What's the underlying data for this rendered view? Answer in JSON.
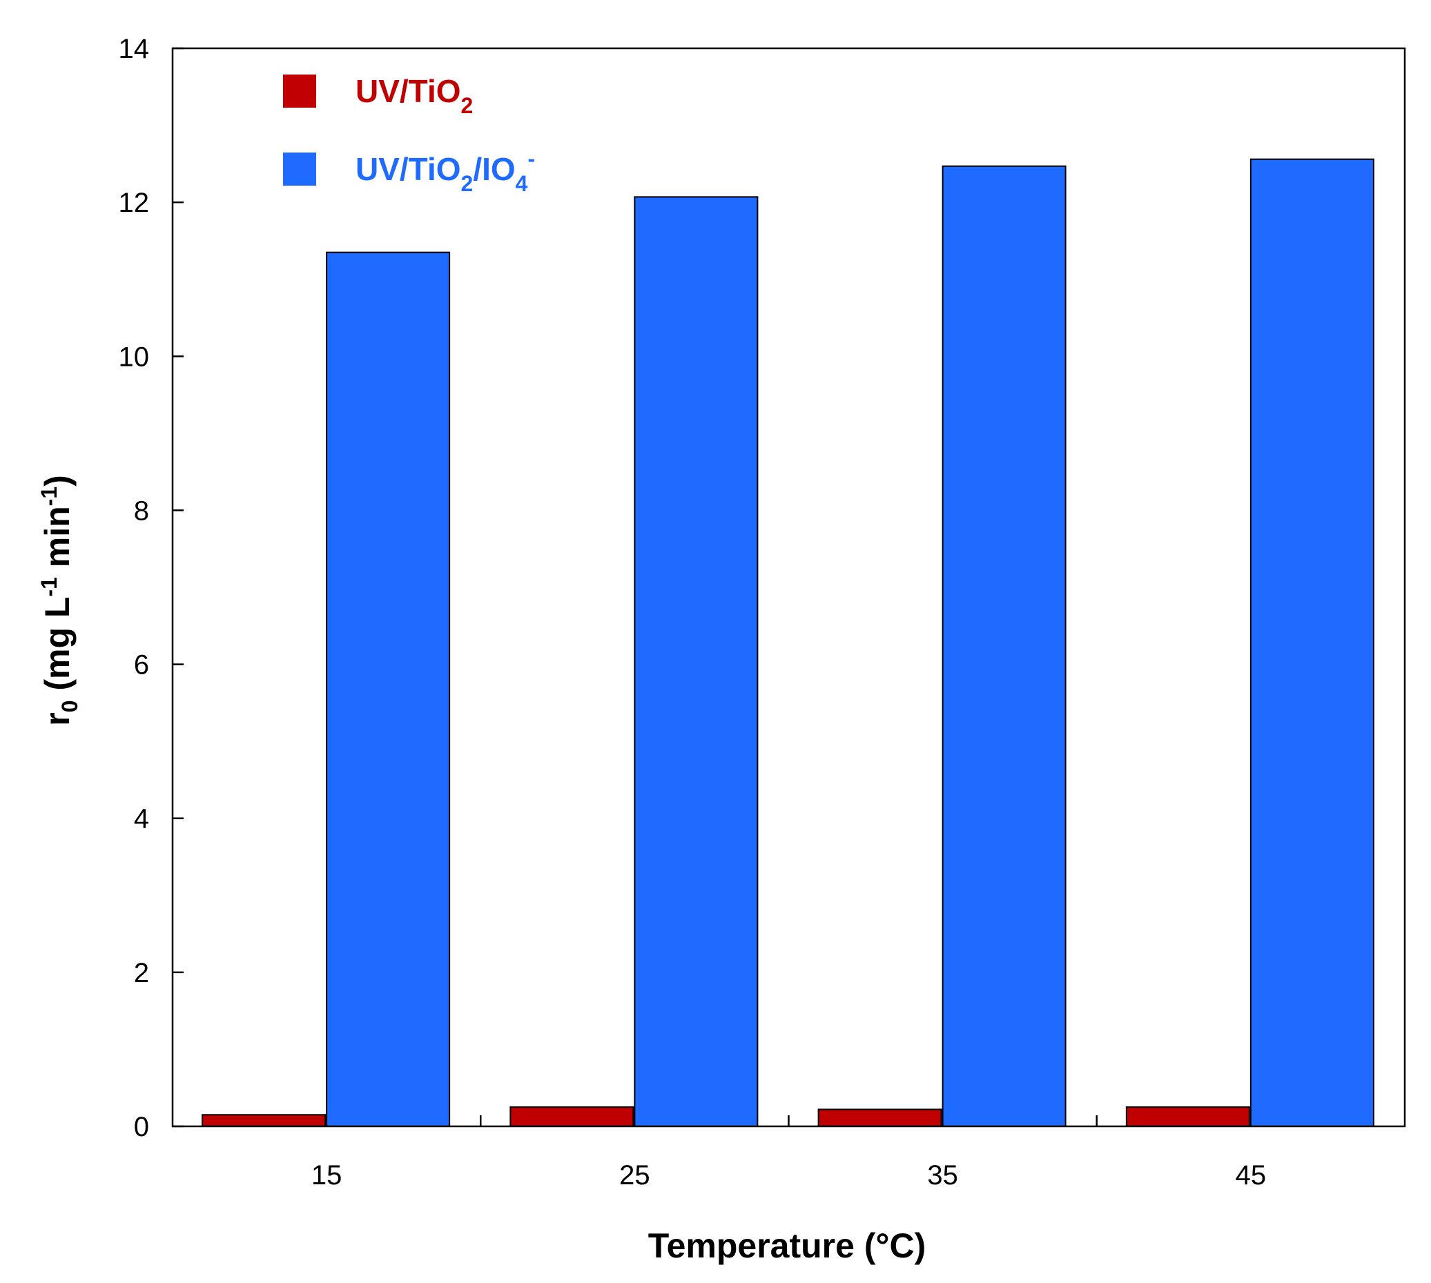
{
  "chart_data": {
    "type": "bar",
    "title": "",
    "xlabel": "Temperature (°C)",
    "ylabel": {
      "base": "r",
      "base_sub": "0",
      "unit_open": " (mg L",
      "unit_sup1": "-1",
      "unit_mid": " min",
      "unit_sup2": "-1",
      "unit_close": ")"
    },
    "categories": [
      "15",
      "25",
      "35",
      "45"
    ],
    "ylim": [
      0,
      14
    ],
    "yticks": [
      0,
      2,
      4,
      6,
      8,
      10,
      12,
      14
    ],
    "grid": false,
    "legend_position": "top-left",
    "series": [
      {
        "name": "UV/TiO2",
        "label_parts": [
          {
            "text": "UV/TiO",
            "shift": "none"
          },
          {
            "text": "2",
            "shift": "sub"
          }
        ],
        "color": "#C00000",
        "values": [
          0.15,
          0.25,
          0.22,
          0.25
        ]
      },
      {
        "name": "UV/TiO2/IO4-",
        "label_parts": [
          {
            "text": "UV/TiO",
            "shift": "none"
          },
          {
            "text": "2",
            "shift": "sub"
          },
          {
            "text": "/IO",
            "shift": "none"
          },
          {
            "text": "4",
            "shift": "sub"
          },
          {
            "text": "-",
            "shift": "sup"
          }
        ],
        "color": "#1F6BFF",
        "values": [
          11.35,
          12.07,
          12.47,
          12.56
        ]
      }
    ]
  }
}
